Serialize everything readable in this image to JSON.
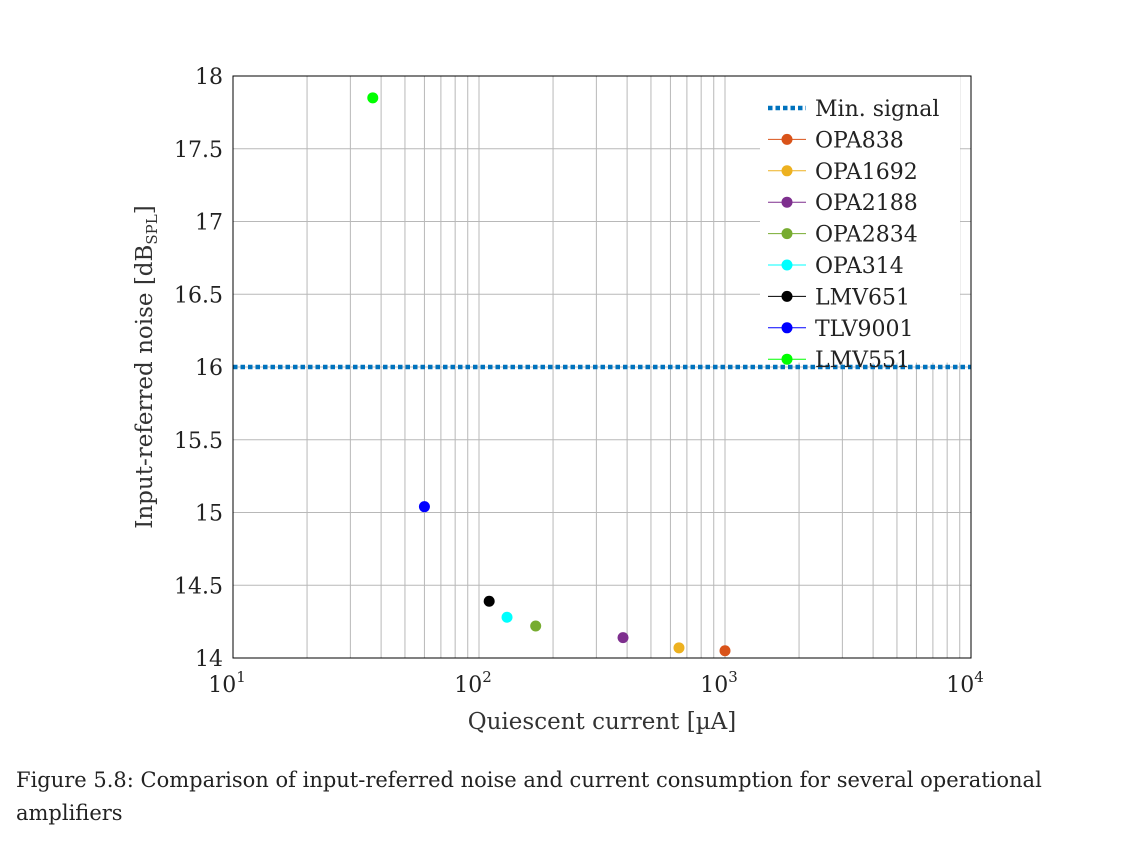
{
  "chart_data": {
    "type": "scatter",
    "x_scale": "log",
    "xlim": [
      10,
      10000
    ],
    "ylim": [
      14,
      18
    ],
    "x_ticks": [
      {
        "base": "10",
        "exp": "1"
      },
      {
        "base": "10",
        "exp": "2"
      },
      {
        "base": "10",
        "exp": "3"
      },
      {
        "base": "10",
        "exp": "4"
      }
    ],
    "y_ticks": [
      "14",
      "14.5",
      "15",
      "15.5",
      "16",
      "16.5",
      "17",
      "17.5",
      "18"
    ],
    "xlabel": "Quiescent current [µA]",
    "ylabel": {
      "main": "Input-referred noise [dB",
      "sub": "SPL",
      "close": "]"
    },
    "grid": true,
    "legend_position": "top-right",
    "reference_line": {
      "name": "Min. signal",
      "y": 16,
      "color": "#0072bd",
      "style": "dotted"
    },
    "series": [
      {
        "name": "OPA838",
        "x": 1000,
        "y": 14.05,
        "color": "#d95319"
      },
      {
        "name": "OPA1692",
        "x": 650,
        "y": 14.07,
        "color": "#edb120"
      },
      {
        "name": "OPA2188",
        "x": 385,
        "y": 14.14,
        "color": "#7e2f8e"
      },
      {
        "name": "OPA2834",
        "x": 170,
        "y": 14.22,
        "color": "#77ac30"
      },
      {
        "name": "OPA314",
        "x": 130,
        "y": 14.28,
        "color": "#00ffff"
      },
      {
        "name": "LMV651",
        "x": 110,
        "y": 14.39,
        "color": "#000000"
      },
      {
        "name": "TLV9001",
        "x": 60,
        "y": 15.04,
        "color": "#0000ff"
      },
      {
        "name": "LMV551",
        "x": 37,
        "y": 17.85,
        "color": "#00ff00"
      }
    ]
  },
  "caption": "Figure 5.8: Comparison of input-referred noise and current consumption for several operational amplifiers"
}
